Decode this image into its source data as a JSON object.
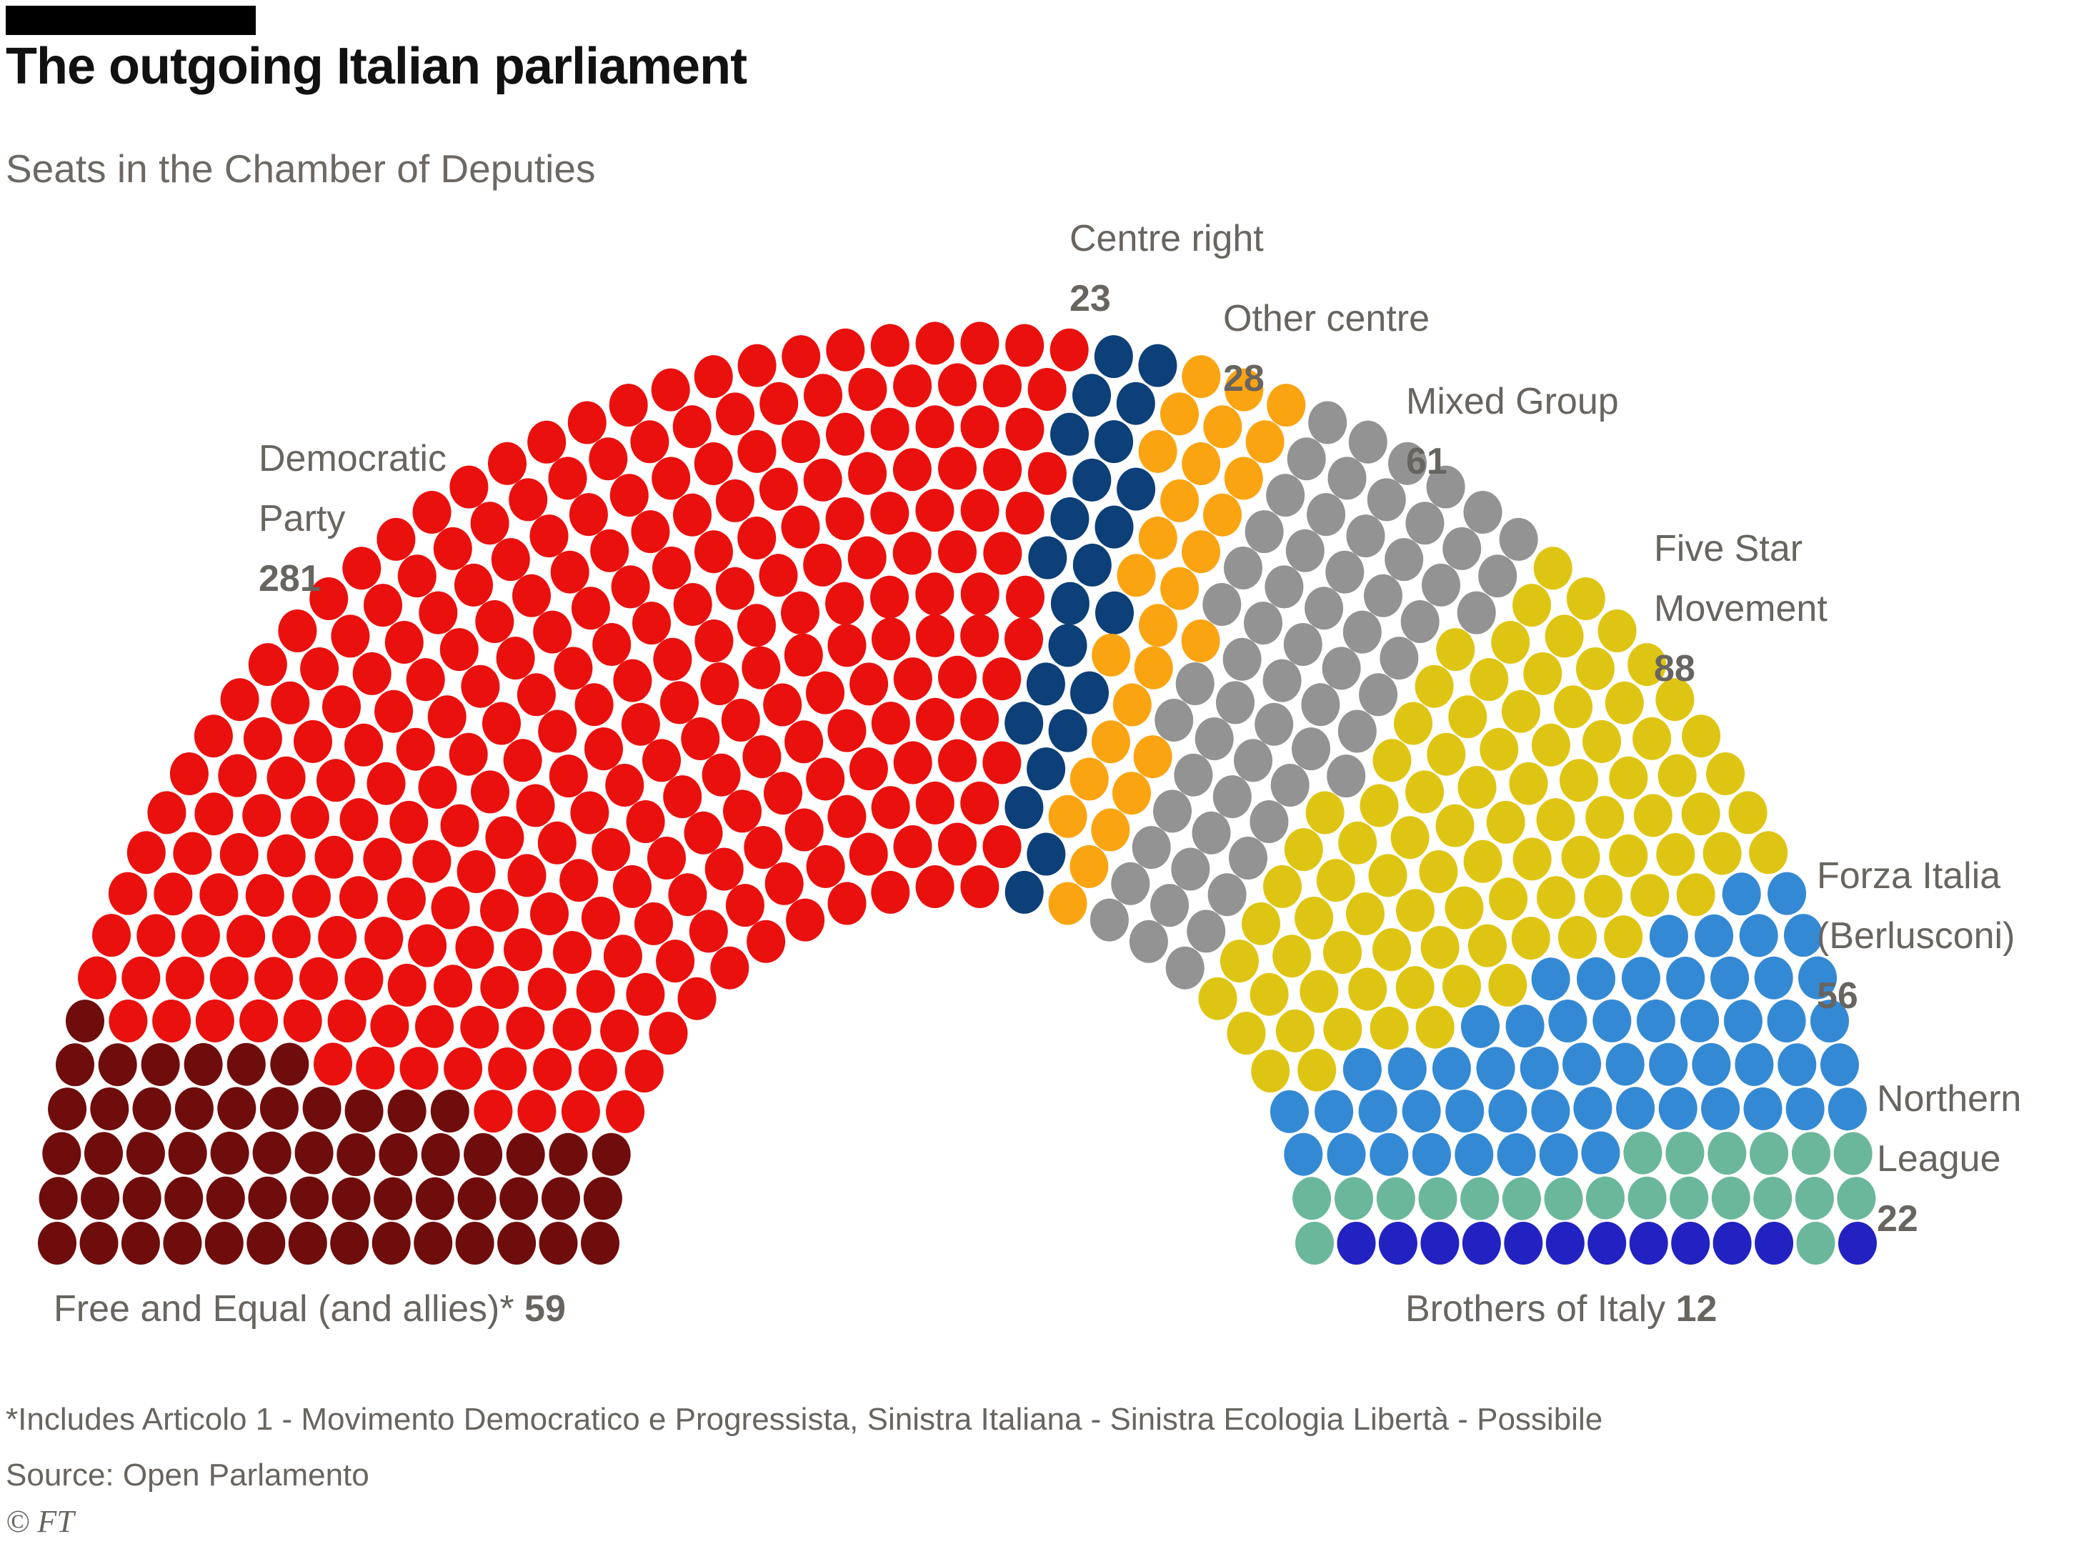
{
  "header": {
    "title": "The outgoing Italian parliament",
    "subtitle": "Seats in the Chamber of Deputies"
  },
  "chart_data": {
    "type": "parliament-dot",
    "title": "The outgoing Italian parliament",
    "subtitle": "Seats in the Chamber of Deputies",
    "total_seats": 630,
    "series": [
      {
        "name": "Free and Equal (and allies)*",
        "seats": 59,
        "color": "#6f0d0c"
      },
      {
        "name": "Democratic Party",
        "seats": 281,
        "color": "#ea100e"
      },
      {
        "name": "Centre right",
        "seats": 23,
        "color": "#0d3f78"
      },
      {
        "name": "Other centre",
        "seats": 28,
        "color": "#fba412"
      },
      {
        "name": "Mixed Group",
        "seats": 61,
        "color": "#939393"
      },
      {
        "name": "Five Star Movement",
        "seats": 88,
        "color": "#dfc513"
      },
      {
        "name": "Forza Italia (Berlusconi)",
        "seats": 56,
        "color": "#3489d4"
      },
      {
        "name": "Northern League",
        "seats": 22,
        "color": "#6bb79c"
      },
      {
        "name": "Brothers of Italy",
        "seats": 12,
        "color": "#2222c2"
      }
    ],
    "annotations": [
      {
        "id": "democratic-party",
        "lines": [
          "Democratic",
          "Party"
        ],
        "value": "281",
        "x": 362,
        "y": 600
      },
      {
        "id": "centre-right",
        "lines": [
          "Centre right"
        ],
        "value": "23",
        "x": 1497,
        "y": 292
      },
      {
        "id": "other-centre",
        "lines": [
          "Other centre"
        ],
        "value": "28",
        "x": 1712,
        "y": 404
      },
      {
        "id": "mixed-group",
        "lines": [
          "Mixed Group"
        ],
        "value": "61",
        "x": 1968,
        "y": 520
      },
      {
        "id": "five-star",
        "lines": [
          "Five Star",
          "Movement"
        ],
        "value": "88",
        "x": 2315,
        "y": 726
      },
      {
        "id": "forza-italia",
        "lines": [
          "Forza Italia",
          "(Berlusconi)"
        ],
        "value": "56",
        "x": 2543,
        "y": 1184
      },
      {
        "id": "northern-league",
        "lines": [
          "Northern",
          "League"
        ],
        "value": "22",
        "x": 2627,
        "y": 1496
      },
      {
        "id": "free-and-equal",
        "inline": true,
        "text": "Free and Equal (and allies)*",
        "value": "59",
        "x": 75,
        "y": 1790
      },
      {
        "id": "brothers-of-italy",
        "inline": true,
        "text": "Brothers of Italy",
        "value": "12",
        "x": 1967,
        "y": 1790
      }
    ],
    "layout": {
      "rows": 14,
      "center": [
        1340,
        1740
      ],
      "inner_radius": 500,
      "outer_radius": 1260,
      "dot_rx": 27,
      "dot_ry": 30,
      "arc_start_deg": 180,
      "arc_end_deg": 0,
      "legend_position": "around-arc"
    }
  },
  "footer": {
    "footnote": "*Includes Articolo 1 - Movimento Democratico e Progressista, Sinistra Italiana - Sinistra Ecologia Libertà - Possibile",
    "source": "Source: Open Parlamento",
    "copyright": "© FT"
  }
}
